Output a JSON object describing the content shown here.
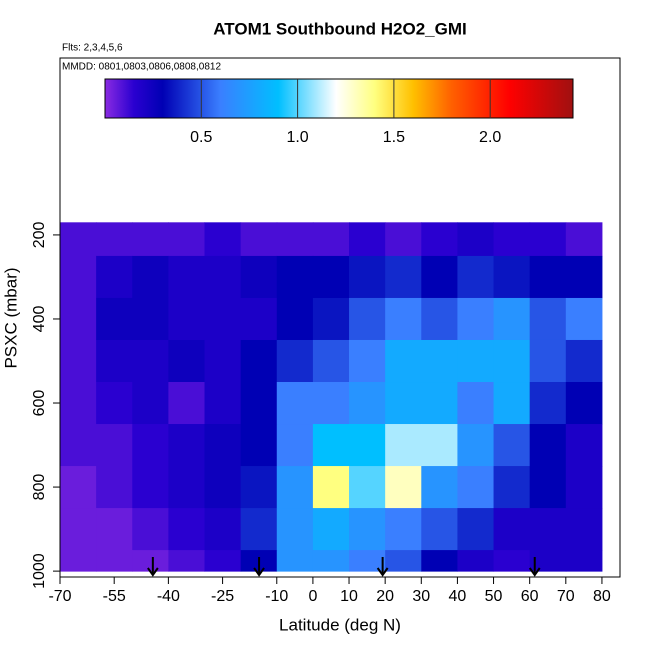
{
  "chart_data": {
    "type": "heatmap",
    "title": "ATOM1 Southbound H2O2_GMI",
    "subtitle": "Flts: 2,3,4,5,6",
    "annotation": "MMDD: 0801,0803,0806,0808,0812",
    "x_label": "Latitude (deg N)",
    "y_label": "PSXC (mbar)",
    "xlim": [
      -70,
      85
    ],
    "xticks": [
      -70,
      -55,
      -40,
      -25,
      -10,
      0,
      10,
      20,
      30,
      40,
      50,
      60,
      70,
      80
    ],
    "ylim": [
      1014,
      -221
    ],
    "yticks": [
      200,
      400,
      600,
      800,
      1000
    ],
    "x_edges": [
      -70,
      -60,
      -50,
      -40,
      -30,
      -20,
      -10,
      0,
      10,
      20,
      30,
      40,
      50,
      60,
      70,
      80
    ],
    "y_edges": [
      170,
      250,
      350,
      450,
      550,
      650,
      750,
      850,
      950,
      1000
    ],
    "z": [
      [
        0.1,
        0.1,
        0.1,
        0.1,
        0.15,
        0.1,
        0.1,
        0.1,
        0.15,
        0.1,
        0.15,
        0.2,
        0.15,
        0.15,
        0.1
      ],
      [
        0.1,
        0.2,
        0.25,
        0.2,
        0.2,
        0.25,
        0.3,
        0.3,
        0.35,
        0.4,
        0.3,
        0.4,
        0.35,
        0.3,
        0.3
      ],
      [
        0.1,
        0.25,
        0.25,
        0.2,
        0.2,
        0.2,
        0.3,
        0.35,
        0.5,
        0.6,
        0.5,
        0.6,
        0.7,
        0.5,
        0.6
      ],
      [
        0.1,
        0.2,
        0.2,
        0.25,
        0.2,
        0.3,
        0.4,
        0.5,
        0.6,
        0.8,
        0.8,
        0.8,
        0.8,
        0.5,
        0.4
      ],
      [
        0.1,
        0.15,
        0.2,
        0.1,
        0.2,
        0.3,
        0.6,
        0.6,
        0.7,
        0.8,
        0.8,
        0.6,
        0.8,
        0.4,
        0.3
      ],
      [
        0.1,
        0.1,
        0.15,
        0.2,
        0.25,
        0.3,
        0.6,
        0.9,
        0.9,
        1.1,
        1.1,
        0.7,
        0.5,
        0.3,
        0.2
      ],
      [
        0.05,
        0.1,
        0.15,
        0.2,
        0.25,
        0.35,
        0.7,
        1.4,
        1.0,
        1.3,
        0.7,
        0.6,
        0.4,
        0.3,
        0.2
      ],
      [
        0.05,
        0.05,
        0.1,
        0.15,
        0.2,
        0.4,
        0.7,
        0.8,
        0.7,
        0.6,
        0.5,
        0.4,
        0.2,
        0.2,
        0.2
      ],
      [
        0.05,
        0.05,
        0.05,
        0.1,
        0.15,
        0.3,
        0.7,
        0.7,
        0.6,
        0.5,
        0.3,
        0.2,
        0.15,
        0.2,
        0.2
      ]
    ],
    "arrows": [
      -44.3,
      -14.9,
      19.3,
      61.4
    ],
    "colorbar_lim": [
      0,
      2.43
    ],
    "colorbar_ticks": [
      0.5,
      1.0,
      1.5,
      2.0
    ],
    "colormap": [
      [
        0,
        "#8a2be2"
      ],
      [
        0.15,
        "#2a00d0"
      ],
      [
        0.3,
        "#0000b4"
      ],
      [
        0.6,
        "#3a7fff"
      ],
      [
        0.9,
        "#00bfff"
      ],
      [
        1.2,
        "#ffffff"
      ],
      [
        1.4,
        "#ffff80"
      ],
      [
        1.6,
        "#ffc000"
      ],
      [
        1.8,
        "#ff6000"
      ],
      [
        2.1,
        "#ff0000"
      ],
      [
        2.43,
        "#a01010"
      ]
    ]
  }
}
